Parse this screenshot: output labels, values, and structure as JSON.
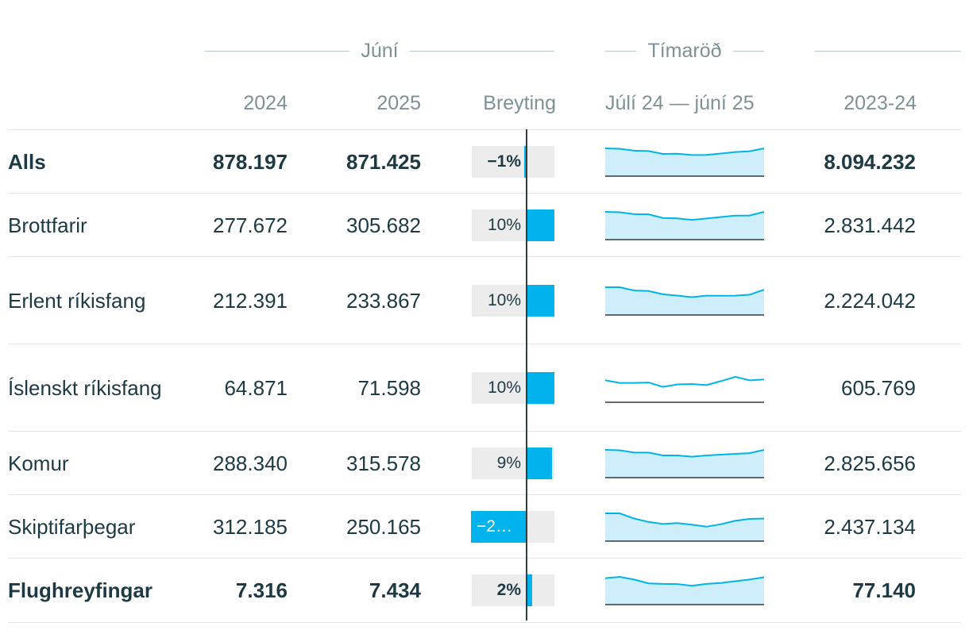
{
  "header": {
    "group_june": "Júní",
    "group_series": "Tímaröð",
    "col_2024": "2024",
    "col_2025": "2025",
    "col_change": "Breyting",
    "col_series": "Júlí 24 — júní 25",
    "col_total": "2023-24"
  },
  "colors": {
    "accent": "#00b3ec",
    "area": "#cdeefa",
    "bar_bg": "#ececec",
    "text": "#1d3a44",
    "muted": "#7d9197"
  },
  "chart_data": {
    "type": "table",
    "rows": [
      {
        "label": "Alls",
        "bold": true,
        "v2024": "878.197",
        "v2025": "871.425",
        "change": -1,
        "change_label": "−1%",
        "total": "8.094.232",
        "spark": [
          1.0,
          0.98,
          0.88,
          0.86,
          0.71,
          0.72,
          0.65,
          0.66,
          0.73,
          0.81,
          0.85,
          1.0
        ],
        "spark_area": true
      },
      {
        "label": "Brottfarir",
        "bold": false,
        "v2024": "277.672",
        "v2025": "305.682",
        "change": 10,
        "change_label": "10%",
        "total": "2.831.442",
        "spark": [
          1.0,
          0.98,
          0.88,
          0.87,
          0.68,
          0.66,
          0.58,
          0.65,
          0.73,
          0.8,
          0.81,
          1.0
        ],
        "spark_area": true
      },
      {
        "label": "Erlent ríkisfang",
        "bold": false,
        "v2024": "212.391",
        "v2025": "233.867",
        "change": 10,
        "change_label": "10%",
        "total": "2.224.042",
        "spark": [
          1.0,
          1.0,
          0.83,
          0.8,
          0.63,
          0.56,
          0.48,
          0.56,
          0.55,
          0.56,
          0.61,
          0.87
        ],
        "spark_area": true
      },
      {
        "label": "Íslenskt ríkisfang",
        "bold": false,
        "v2024": "64.871",
        "v2025": "71.598",
        "change": 10,
        "change_label": "10%",
        "total": "605.769",
        "spark": [
          0.7,
          0.56,
          0.56,
          0.58,
          0.35,
          0.48,
          0.5,
          0.44,
          0.65,
          0.88,
          0.69,
          0.74
        ],
        "spark_area": false
      },
      {
        "label": "Komur",
        "bold": false,
        "v2024": "288.340",
        "v2025": "315.578",
        "change": 9,
        "change_label": "9%",
        "total": "2.825.656",
        "spark": [
          1.0,
          0.98,
          0.86,
          0.86,
          0.71,
          0.71,
          0.64,
          0.71,
          0.75,
          0.79,
          0.83,
          1.0
        ],
        "spark_area": true
      },
      {
        "label": "Skiptifarþegar",
        "bold": false,
        "v2024": "312.185",
        "v2025": "250.165",
        "change": -20,
        "change_label": "−2…",
        "total": "2.437.134",
        "spark": [
          1.0,
          1.0,
          0.73,
          0.55,
          0.44,
          0.49,
          0.41,
          0.3,
          0.43,
          0.61,
          0.71,
          0.73
        ],
        "spark_area": true
      },
      {
        "label": "Flughreyfingar",
        "bold": true,
        "v2024": "7.316",
        "v2025": "7.434",
        "change": 2,
        "change_label": "2%",
        "total": "77.140",
        "spark": [
          0.93,
          1.0,
          0.86,
          0.66,
          0.63,
          0.62,
          0.53,
          0.63,
          0.68,
          0.77,
          0.86,
          0.98
        ],
        "spark_area": true
      }
    ]
  }
}
